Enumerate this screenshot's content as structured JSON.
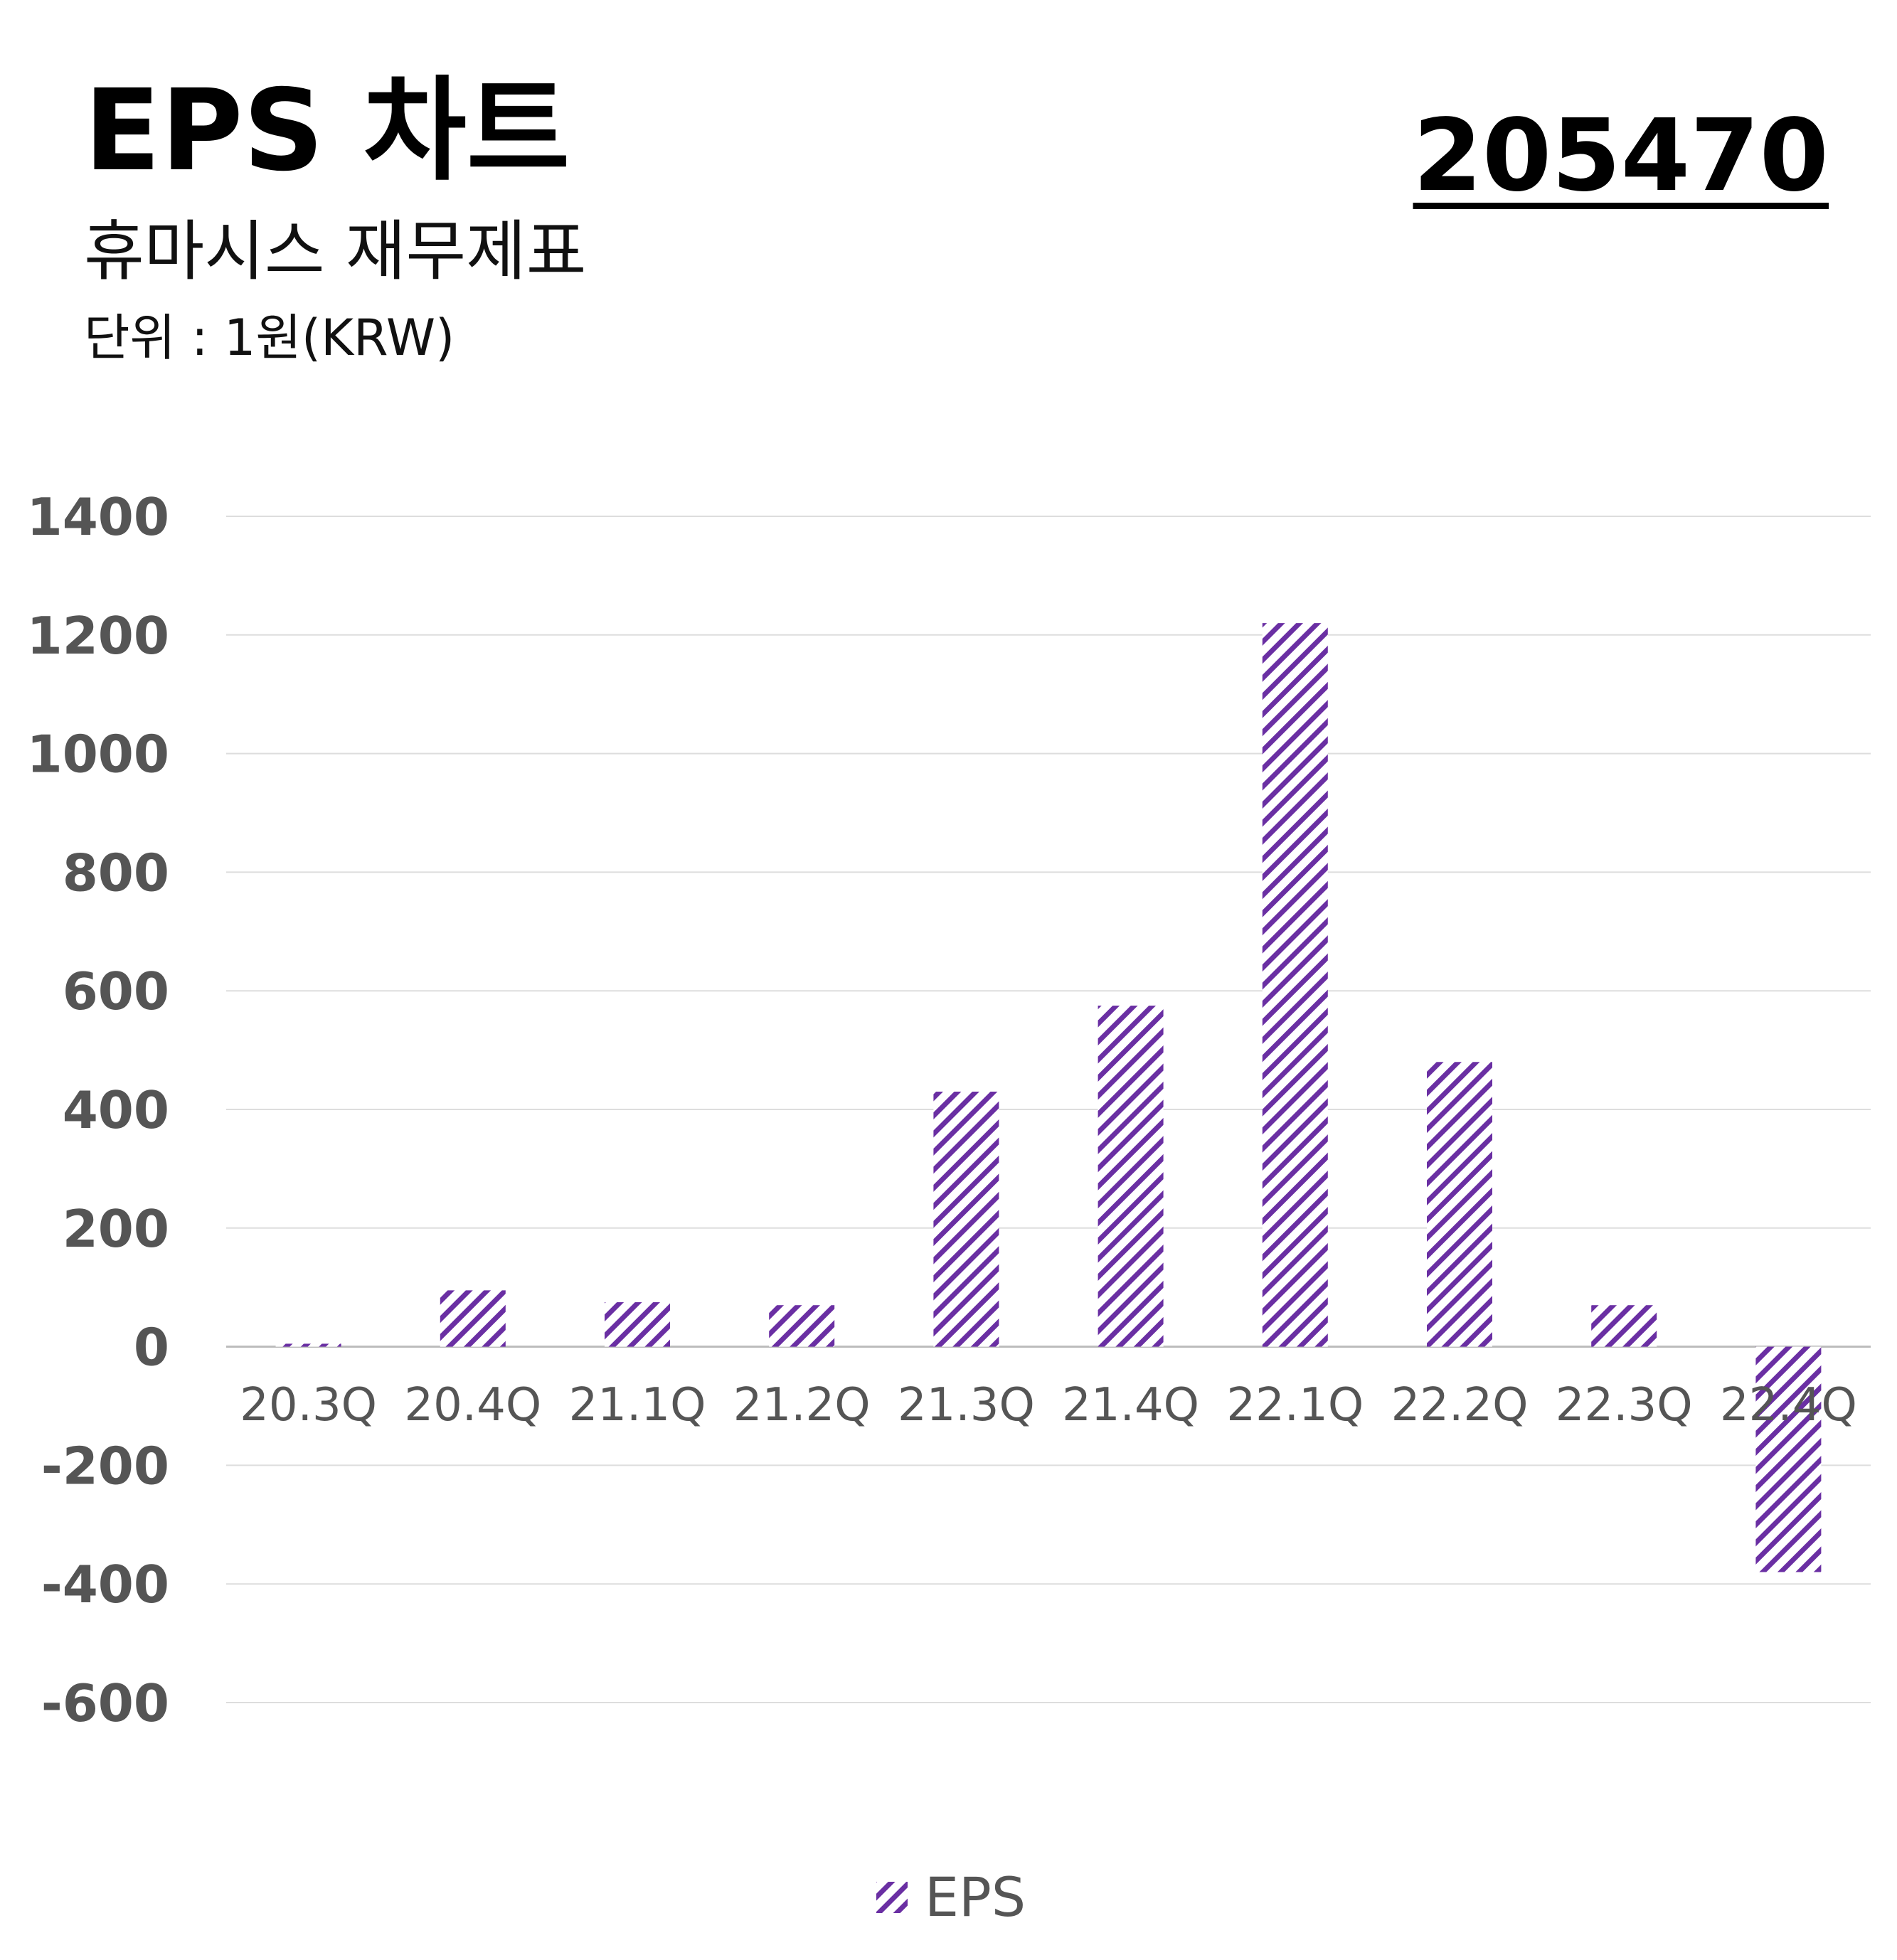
{
  "header": {
    "title": "EPS 차트",
    "subtitle": "휴마시스 재무제표",
    "unit": "단위 : 1원(KRW)",
    "stock_code": "205470"
  },
  "colors": {
    "bar": "#6a2fa3",
    "grid": "#dddddd",
    "axis_text": "#555555"
  },
  "chart_data": {
    "type": "bar",
    "categories": [
      "20.3Q",
      "20.4Q",
      "21.1Q",
      "21.2Q",
      "21.3Q",
      "21.4Q",
      "22.1Q",
      "22.2Q",
      "22.3Q",
      "22.4Q"
    ],
    "series": [
      {
        "name": "EPS",
        "values": [
          5,
          95,
          75,
          70,
          430,
          575,
          1220,
          480,
          70,
          -380
        ]
      }
    ],
    "yticks": [
      "1400",
      "1200",
      "1000",
      "800",
      "600",
      "400",
      "200",
      "0",
      "-200",
      "-400",
      "-600"
    ],
    "ylim": [
      -600,
      1400
    ],
    "grid": true,
    "legend_position": "bottom",
    "bar_fill": "diagonal-hatch"
  }
}
